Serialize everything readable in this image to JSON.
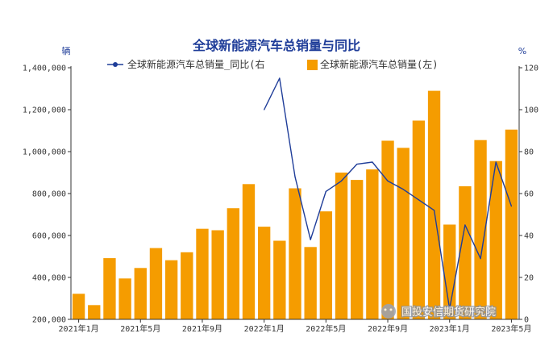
{
  "chart_data": {
    "type": "bar+line",
    "title": "全球新能源汽车总销量与同比",
    "left_unit": "辆",
    "right_unit": "%",
    "categories": [
      "2021-01",
      "2021-02",
      "2021-03",
      "2021-04",
      "2021-05",
      "2021-06",
      "2021-07",
      "2021-08",
      "2021-09",
      "2021-10",
      "2021-11",
      "2021-12",
      "2022-01",
      "2022-02",
      "2022-03",
      "2022-04",
      "2022-05",
      "2022-06",
      "2022-07",
      "2022-08",
      "2022-09",
      "2022-10",
      "2022-11",
      "2022-12",
      "2023-01",
      "2023-02",
      "2023-03",
      "2023-04",
      "2023-05"
    ],
    "x_tick_labels": [
      {
        "index": 0,
        "label": "2021年1月"
      },
      {
        "index": 4,
        "label": "2021年5月"
      },
      {
        "index": 8,
        "label": "2021年9月"
      },
      {
        "index": 12,
        "label": "2022年1月"
      },
      {
        "index": 16,
        "label": "2022年5月"
      },
      {
        "index": 20,
        "label": "2022年9月"
      },
      {
        "index": 24,
        "label": "2023年1月"
      },
      {
        "index": 28,
        "label": "2023年5月"
      }
    ],
    "series": [
      {
        "name": "全球新能源汽车总销量(左)",
        "type": "bar",
        "axis": "left",
        "color": "#f59c00",
        "values": [
          322000,
          268000,
          492000,
          395000,
          445000,
          540000,
          482000,
          520000,
          632000,
          625000,
          730000,
          845000,
          642000,
          575000,
          825000,
          545000,
          715000,
          900000,
          865000,
          915000,
          1052000,
          1018000,
          1148000,
          1290000,
          652000,
          835000,
          1055000,
          955000,
          1105000
        ]
      },
      {
        "name": "全球新能源汽车总销量_同比(右)",
        "type": "line",
        "axis": "right",
        "color": "#1f3d99",
        "values": [
          null,
          null,
          null,
          null,
          null,
          null,
          null,
          null,
          null,
          null,
          null,
          null,
          100,
          115,
          68,
          38,
          61,
          66,
          74,
          75,
          66,
          62,
          57,
          52,
          5,
          45,
          29,
          75,
          54
        ]
      }
    ],
    "legend": [
      "全球新能源汽车总销量_同比(右",
      "全球新能源汽车总销量(左)"
    ],
    "left_axis": {
      "min": 200000,
      "max": 1400000,
      "step": 200000,
      "tick_labels": [
        "200,000",
        "400,000",
        "600,000",
        "800,000",
        "1,000,000",
        "1,200,000",
        "1,400,000"
      ]
    },
    "right_axis": {
      "min": 0,
      "max": 120,
      "step": 20,
      "tick_labels": [
        "0",
        "20",
        "40",
        "60",
        "80",
        "100",
        "120"
      ]
    },
    "legend_position": "top-center",
    "grid": false,
    "watermark": "国投安信期货研究院"
  }
}
